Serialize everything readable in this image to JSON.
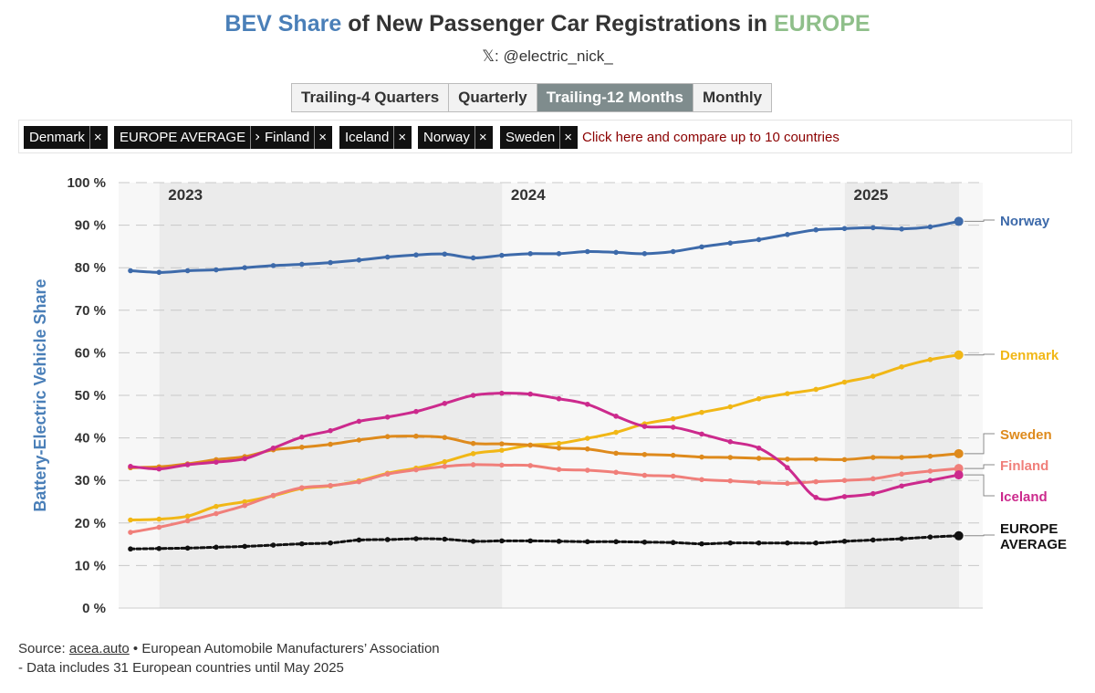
{
  "title": {
    "part1": "BEV Share",
    "part2": " of New Passenger Car Registrations in ",
    "part3": "EUROPE"
  },
  "handle": "𝕏: @electric_nick_",
  "tabs": [
    {
      "label": "Trailing-4 Quarters",
      "active": false
    },
    {
      "label": "Quarterly",
      "active": false
    },
    {
      "label": "Trailing-12 Months",
      "active": true
    },
    {
      "label": "Monthly",
      "active": false
    }
  ],
  "chips": [
    "Denmark",
    "EUROPE AVERAGE",
    "Finland",
    "Iceland",
    "Norway",
    "Sweden"
  ],
  "chip_close": "×",
  "compare_text": "Click here and compare up to 10 countries",
  "source": {
    "prefix": "Source: ",
    "link": "acea.auto",
    "suffix": " • European Automobile Manufacturers’ Association",
    "note": "- Data includes 31 European countries until May 2025"
  },
  "chart_data": {
    "type": "line",
    "title": "BEV Share of New Passenger Car Registrations in EUROPE",
    "ylabel": "Battery-Electric Vehicle Share",
    "xlabel": "",
    "ylim": [
      0,
      100
    ],
    "yticks": [
      "0 %",
      "10 %",
      "20 %",
      "30 %",
      "40 %",
      "50 %",
      "60 %",
      "70 %",
      "80 %",
      "90 %",
      "100 %"
    ],
    "year_labels": [
      "2023",
      "2024",
      "2025"
    ],
    "x": [
      "2022-12",
      "2023-01",
      "2023-02",
      "2023-03",
      "2023-04",
      "2023-05",
      "2023-06",
      "2023-07",
      "2023-08",
      "2023-09",
      "2023-10",
      "2023-11",
      "2023-12",
      "2024-01",
      "2024-02",
      "2024-03",
      "2024-04",
      "2024-05",
      "2024-06",
      "2024-07",
      "2024-08",
      "2024-09",
      "2024-10",
      "2024-11",
      "2024-12",
      "2025-01",
      "2025-02",
      "2025-03",
      "2025-04",
      "2025-05"
    ],
    "series": [
      {
        "name": "Norway",
        "label": [
          "Norway"
        ],
        "color": "#3d6aaa",
        "values": [
          79.3,
          78.9,
          79.3,
          79.5,
          80.0,
          80.5,
          80.8,
          81.2,
          81.8,
          82.5,
          83.0,
          83.2,
          82.3,
          82.9,
          83.3,
          83.3,
          83.8,
          83.6,
          83.3,
          83.8,
          84.9,
          85.8,
          86.6,
          87.8,
          88.9,
          89.2,
          89.4,
          89.1,
          89.6,
          90.9
        ]
      },
      {
        "name": "Denmark",
        "label": [
          "Denmark"
        ],
        "color": "#f1b716",
        "values": [
          20.7,
          20.9,
          21.6,
          23.9,
          25.0,
          26.4,
          28.1,
          28.7,
          29.9,
          31.7,
          32.9,
          34.4,
          36.3,
          37.1,
          38.3,
          38.7,
          39.9,
          41.3,
          43.3,
          44.5,
          46.0,
          47.3,
          49.2,
          50.4,
          51.4,
          53.1,
          54.5,
          56.7,
          58.4,
          59.5
        ]
      },
      {
        "name": "Sweden",
        "label": [
          "Sweden"
        ],
        "color": "#de8a1c",
        "values": [
          33.0,
          33.2,
          33.9,
          34.9,
          35.6,
          37.2,
          37.8,
          38.5,
          39.5,
          40.3,
          40.4,
          40.1,
          38.7,
          38.6,
          38.3,
          37.6,
          37.4,
          36.4,
          36.1,
          35.9,
          35.5,
          35.4,
          35.2,
          35.0,
          35.0,
          34.9,
          35.4,
          35.4,
          35.7,
          36.3
        ]
      },
      {
        "name": "Finland",
        "label": [
          "Finland"
        ],
        "color": "#f07f7a",
        "values": [
          17.8,
          19.0,
          20.5,
          22.2,
          24.1,
          26.5,
          28.3,
          28.8,
          29.7,
          31.5,
          32.5,
          33.3,
          33.7,
          33.6,
          33.5,
          32.6,
          32.4,
          31.9,
          31.2,
          31.0,
          30.2,
          29.9,
          29.5,
          29.3,
          29.7,
          30.0,
          30.4,
          31.5,
          32.2,
          32.8
        ]
      },
      {
        "name": "Iceland",
        "label": [
          "Iceland"
        ],
        "color": "#cc2a8d",
        "values": [
          33.3,
          32.7,
          33.7,
          34.3,
          35.1,
          37.6,
          40.2,
          41.7,
          43.9,
          44.9,
          46.2,
          48.1,
          50.0,
          50.5,
          50.3,
          49.2,
          47.9,
          45.1,
          42.7,
          42.5,
          40.9,
          39.1,
          37.6,
          33.0,
          26.0,
          26.2,
          26.9,
          28.7,
          30.0,
          31.3
        ]
      },
      {
        "name": "EUROPE AVERAGE",
        "label": [
          "EUROPE",
          "AVERAGE"
        ],
        "color": "#111111",
        "dashed": true,
        "values": [
          13.9,
          14.0,
          14.1,
          14.3,
          14.5,
          14.8,
          15.1,
          15.3,
          16.0,
          16.1,
          16.3,
          16.2,
          15.7,
          15.8,
          15.8,
          15.7,
          15.6,
          15.6,
          15.5,
          15.4,
          15.1,
          15.3,
          15.3,
          15.3,
          15.3,
          15.7,
          16.0,
          16.3,
          16.7,
          17.0
        ]
      }
    ]
  }
}
